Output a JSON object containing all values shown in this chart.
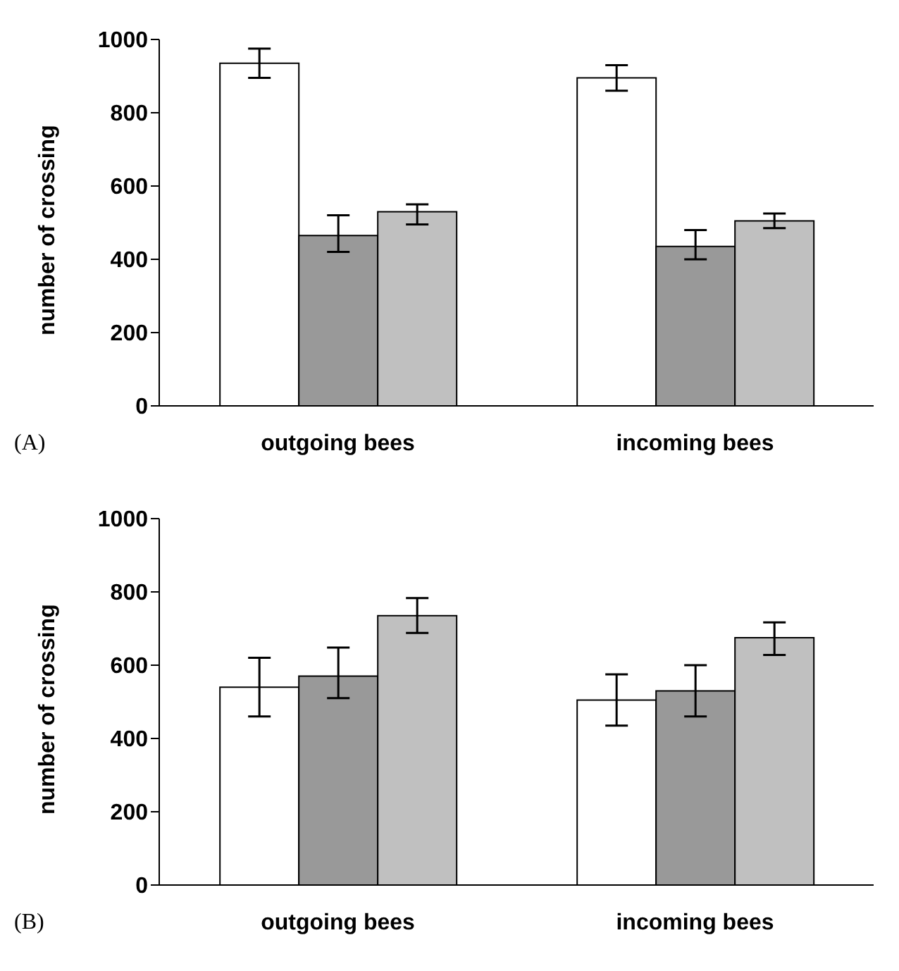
{
  "chart_data": [
    {
      "type": "bar",
      "ylabel": "number of crossing",
      "categories": [
        "outgoing bees",
        "incoming bees"
      ],
      "ylim": [
        0,
        1000
      ],
      "yticks": [
        0,
        200,
        400,
        600,
        800,
        1000
      ],
      "grid": false,
      "legend": false,
      "annotations": [
        "(A)"
      ],
      "series": [
        {
          "color": "#ffffff",
          "values": [
            935,
            895
          ],
          "errors": [
            [
              895,
              975
            ],
            [
              860,
              930
            ]
          ]
        },
        {
          "color": "#999999",
          "values": [
            465,
            435
          ],
          "errors": [
            [
              420,
              520
            ],
            [
              400,
              480
            ]
          ]
        },
        {
          "color": "#c0c0c0",
          "values": [
            530,
            505
          ],
          "errors": [
            [
              495,
              550
            ],
            [
              485,
              525
            ]
          ]
        }
      ]
    },
    {
      "type": "bar",
      "ylabel": "number of crossing",
      "categories": [
        "outgoing bees",
        "incoming bees"
      ],
      "ylim": [
        0,
        1000
      ],
      "yticks": [
        0,
        200,
        400,
        600,
        800,
        1000
      ],
      "grid": false,
      "legend": false,
      "annotations": [
        "(B)"
      ],
      "series": [
        {
          "color": "#ffffff",
          "values": [
            540,
            505
          ],
          "errors": [
            [
              460,
              620
            ],
            [
              435,
              575
            ]
          ]
        },
        {
          "color": "#999999",
          "values": [
            570,
            530
          ],
          "errors": [
            [
              510,
              648
            ],
            [
              460,
              600
            ]
          ]
        },
        {
          "color": "#c0c0c0",
          "values": [
            735,
            675
          ],
          "errors": [
            [
              688,
              783
            ],
            [
              628,
              717
            ]
          ]
        }
      ]
    }
  ]
}
